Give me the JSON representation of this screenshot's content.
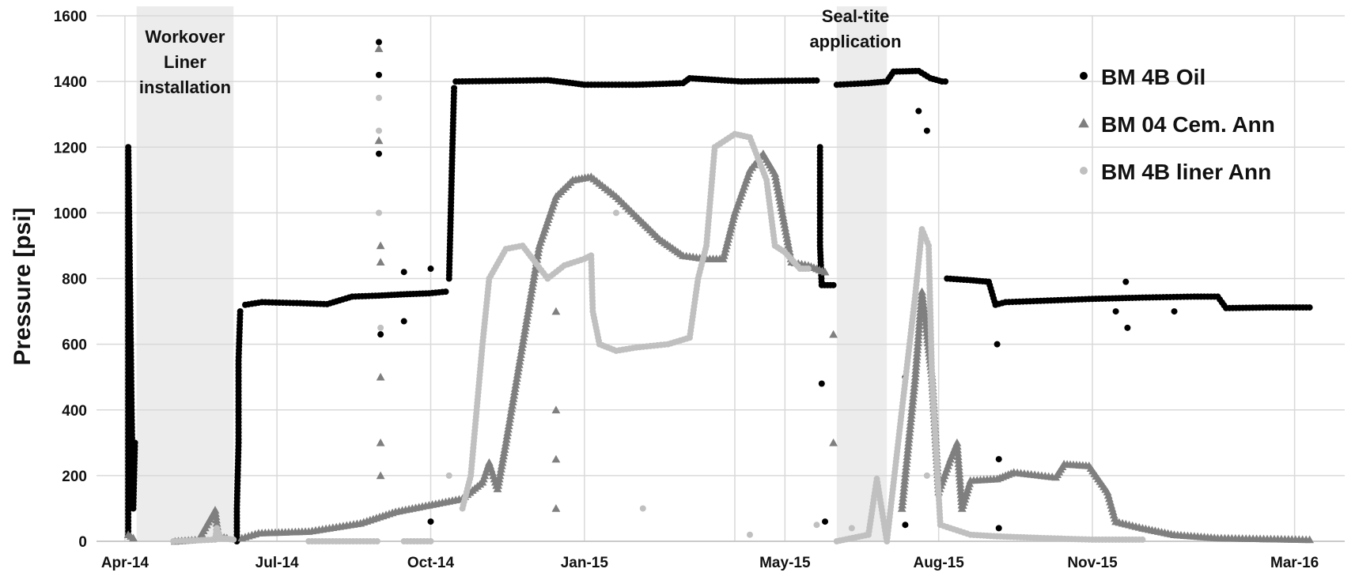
{
  "chart_data": {
    "type": "scatter",
    "title": "",
    "xlabel": "",
    "ylabel": "Pressure [psi]",
    "ylim": [
      0,
      1600
    ],
    "xlim": [
      "2014-03-15",
      "2016-03-31"
    ],
    "x_ticks": [
      {
        "date": "2014-04-01",
        "label": "Apr-14"
      },
      {
        "date": "2014-07-01",
        "label": "Jul-14"
      },
      {
        "date": "2014-10-01",
        "label": "Oct-14"
      },
      {
        "date": "2015-01-01",
        "label": "Jan-15"
      },
      {
        "date": "2015-04-01",
        "label": ""
      },
      {
        "date": "2015-05-01",
        "label": "May-15"
      },
      {
        "date": "2015-08-01",
        "label": "Aug-15"
      },
      {
        "date": "2015-11-01",
        "label": "Nov-15"
      },
      {
        "date": "2016-03-01",
        "label": "Mar-16"
      }
    ],
    "y_ticks": [
      0,
      200,
      400,
      600,
      800,
      1000,
      1200,
      1400,
      1600
    ],
    "grid": true,
    "legend_position": "top-right",
    "shaded_regions": [
      {
        "start": "2014-04-08",
        "end": "2014-06-05",
        "label_lines": [
          "Workover",
          "Liner",
          "installation"
        ]
      },
      {
        "start": "2015-06-01",
        "end": "2015-07-01",
        "label_lines": [
          "Seal-tite",
          "application"
        ]
      }
    ],
    "series": [
      {
        "name": "BM 4B Oil",
        "marker": "circle",
        "color": "#000000",
        "segments": [
          [
            [
              "2014-04-03",
              20
            ],
            [
              "2014-04-03",
              200
            ],
            [
              "2014-04-03",
              600
            ],
            [
              "2014-04-03",
              1000
            ],
            [
              "2014-04-03",
              1200
            ],
            [
              "2014-04-04",
              800
            ],
            [
              "2014-04-05",
              400
            ],
            [
              "2014-04-06",
              100
            ],
            [
              "2014-04-07",
              300
            ]
          ],
          [
            [
              "2014-06-07",
              0
            ],
            [
              "2014-06-07",
              100
            ],
            [
              "2014-06-08",
              300
            ],
            [
              "2014-06-08",
              550
            ],
            [
              "2014-06-09",
              700
            ]
          ],
          [
            [
              "2014-06-12",
              720
            ],
            [
              "2014-06-22",
              728
            ],
            [
              "2014-07-15",
              725
            ],
            [
              "2014-07-31",
              722
            ],
            [
              "2014-08-15",
              745
            ],
            [
              "2014-08-31",
              748
            ],
            [
              "2014-09-15",
              752
            ],
            [
              "2014-09-30",
              755
            ],
            [
              "2014-10-10",
              760
            ]
          ],
          [
            [
              "2014-10-12",
              800
            ],
            [
              "2014-10-13",
              1000
            ],
            [
              "2014-10-14",
              1200
            ],
            [
              "2014-10-15",
              1380
            ]
          ],
          [
            [
              "2014-10-16",
              1400
            ],
            [
              "2014-11-15",
              1402
            ],
            [
              "2014-12-10",
              1404
            ],
            [
              "2014-12-25",
              1395
            ],
            [
              "2015-01-01",
              1390
            ],
            [
              "2015-02-01",
              1390
            ],
            [
              "2015-03-01",
              1395
            ],
            [
              "2015-03-05",
              1410
            ],
            [
              "2015-03-20",
              1405
            ],
            [
              "2015-04-05",
              1400
            ],
            [
              "2015-05-01",
              1402
            ],
            [
              "2015-05-20",
              1403
            ]
          ],
          [
            [
              "2015-05-22",
              1200
            ],
            [
              "2015-05-22",
              900
            ],
            [
              "2015-05-23",
              780
            ],
            [
              "2015-05-30",
              780
            ]
          ],
          [
            [
              "2015-06-01",
              1390
            ],
            [
              "2015-06-20",
              1395
            ],
            [
              "2015-07-01",
              1400
            ],
            [
              "2015-07-05",
              1430
            ],
            [
              "2015-07-20",
              1432
            ],
            [
              "2015-07-27",
              1410
            ],
            [
              "2015-08-03",
              1400
            ],
            [
              "2015-08-05",
              1400
            ]
          ],
          [
            [
              "2015-08-06",
              800
            ],
            [
              "2015-08-20",
              795
            ],
            [
              "2015-08-31",
              790
            ],
            [
              "2015-09-04",
              720
            ],
            [
              "2015-09-10",
              728
            ],
            [
              "2015-10-01",
              732
            ],
            [
              "2015-11-01",
              738
            ],
            [
              "2015-12-01",
              742
            ],
            [
              "2016-01-01",
              745
            ],
            [
              "2016-01-15",
              745
            ],
            [
              "2016-01-20",
              710
            ],
            [
              "2016-02-15",
              712
            ],
            [
              "2016-03-10",
              712
            ]
          ]
        ],
        "scatter_points": [
          [
            "2014-08-31",
            1520
          ],
          [
            "2014-08-31",
            1420
          ],
          [
            "2014-08-31",
            1180
          ],
          [
            "2014-09-01",
            630
          ],
          [
            "2014-09-15",
            820
          ],
          [
            "2014-09-15",
            670
          ],
          [
            "2014-10-01",
            830
          ],
          [
            "2014-10-01",
            60
          ],
          [
            "2015-05-23",
            480
          ],
          [
            "2015-05-25",
            60
          ],
          [
            "2015-07-12",
            500
          ],
          [
            "2015-07-12",
            50
          ],
          [
            "2015-07-20",
            1310
          ],
          [
            "2015-07-25",
            1250
          ],
          [
            "2015-09-05",
            600
          ],
          [
            "2015-09-06",
            250
          ],
          [
            "2015-09-06",
            40
          ],
          [
            "2015-11-15",
            700
          ],
          [
            "2015-11-21",
            790
          ],
          [
            "2015-11-22",
            650
          ],
          [
            "2015-12-20",
            700
          ]
        ]
      },
      {
        "name": "BM 04 Cem. Ann",
        "marker": "triangle",
        "color": "#7f7f7f",
        "segments": [
          [
            [
              "2014-04-03",
              20
            ],
            [
              "2014-04-06",
              10
            ]
          ],
          [
            [
              "2014-05-01",
              0
            ],
            [
              "2014-05-15",
              5
            ],
            [
              "2014-05-25",
              95
            ],
            [
              "2014-05-27",
              15
            ],
            [
              "2014-06-01",
              10
            ]
          ],
          [
            [
              "2014-06-10",
              10
            ],
            [
              "2014-06-20",
              25
            ],
            [
              "2014-07-20",
              30
            ],
            [
              "2014-08-20",
              55
            ],
            [
              "2014-09-10",
              90
            ],
            [
              "2014-09-30",
              110
            ],
            [
              "2014-10-20",
              130
            ],
            [
              "2014-11-01",
              180
            ],
            [
              "2014-11-05",
              240
            ],
            [
              "2014-11-10",
              160
            ],
            [
              "2014-11-15",
              300
            ],
            [
              "2014-11-25",
              600
            ],
            [
              "2014-12-05",
              900
            ],
            [
              "2014-12-15",
              1050
            ],
            [
              "2014-12-25",
              1100
            ],
            [
              "2015-01-05",
              1110
            ],
            [
              "2015-01-20",
              1050
            ],
            [
              "2015-02-01",
              990
            ],
            [
              "2015-02-15",
              920
            ],
            [
              "2015-03-01",
              870
            ],
            [
              "2015-03-15",
              860
            ],
            [
              "2015-03-25",
              860
            ],
            [
              "2015-04-01",
              1000
            ],
            [
              "2015-04-10",
              1130
            ],
            [
              "2015-04-18",
              1180
            ],
            [
              "2015-04-25",
              1120
            ],
            [
              "2015-05-05",
              850
            ],
            [
              "2015-05-15",
              840
            ],
            [
              "2015-05-25",
              820
            ]
          ],
          [
            [
              "2015-07-10",
              100
            ],
            [
              "2015-07-18",
              500
            ],
            [
              "2015-07-22",
              760
            ],
            [
              "2015-07-28",
              500
            ],
            [
              "2015-08-01",
              150
            ],
            [
              "2015-08-08",
              250
            ],
            [
              "2015-08-12",
              300
            ],
            [
              "2015-08-15",
              100
            ],
            [
              "2015-08-20",
              185
            ],
            [
              "2015-09-05",
              190
            ],
            [
              "2015-09-15",
              210
            ],
            [
              "2015-10-10",
              195
            ],
            [
              "2015-10-15",
              235
            ],
            [
              "2015-10-30",
              230
            ],
            [
              "2015-11-10",
              150
            ],
            [
              "2015-11-15",
              60
            ],
            [
              "2015-12-01",
              40
            ],
            [
              "2015-12-20",
              20
            ],
            [
              "2016-01-15",
              10
            ],
            [
              "2016-03-10",
              5
            ]
          ]
        ],
        "scatter_points": [
          [
            "2014-08-31",
            1500
          ],
          [
            "2014-08-31",
            1220
          ],
          [
            "2014-09-01",
            900
          ],
          [
            "2014-09-01",
            850
          ],
          [
            "2014-09-01",
            500
          ],
          [
            "2014-09-01",
            300
          ],
          [
            "2014-09-01",
            200
          ],
          [
            "2014-12-15",
            700
          ],
          [
            "2014-12-15",
            400
          ],
          [
            "2014-12-15",
            250
          ],
          [
            "2014-12-15",
            100
          ],
          [
            "2015-05-30",
            630
          ],
          [
            "2015-05-30",
            300
          ]
        ]
      },
      {
        "name": "BM 4B liner Ann",
        "marker": "circle",
        "color": "#c0c0c0",
        "segments": [
          [
            [
              "2014-04-30",
              0
            ],
            [
              "2014-05-25",
              5
            ],
            [
              "2014-05-26",
              40
            ],
            [
              "2014-05-28",
              10
            ],
            [
              "2014-06-05",
              5
            ]
          ],
          [
            [
              "2014-07-20",
              0
            ],
            [
              "2014-08-30",
              0
            ]
          ],
          [
            [
              "2014-09-15",
              0
            ],
            [
              "2014-10-01",
              0
            ]
          ],
          [
            [
              "2014-10-20",
              100
            ],
            [
              "2014-10-25",
              200
            ],
            [
              "2014-11-01",
              600
            ],
            [
              "2014-11-05",
              800
            ],
            [
              "2014-11-15",
              890
            ],
            [
              "2014-11-25",
              900
            ],
            [
              "2014-12-01",
              860
            ],
            [
              "2014-12-10",
              800
            ],
            [
              "2014-12-20",
              840
            ],
            [
              "2015-01-01",
              860
            ],
            [
              "2015-01-05",
              870
            ],
            [
              "2015-01-06",
              700
            ],
            [
              "2015-01-10",
              600
            ],
            [
              "2015-01-20",
              580
            ],
            [
              "2015-02-01",
              590
            ],
            [
              "2015-02-20",
              600
            ],
            [
              "2015-03-05",
              620
            ],
            [
              "2015-03-10",
              800
            ],
            [
              "2015-03-15",
              900
            ],
            [
              "2015-03-20",
              1200
            ],
            [
              "2015-04-01",
              1240
            ],
            [
              "2015-04-10",
              1230
            ],
            [
              "2015-04-20",
              1100
            ],
            [
              "2015-04-25",
              900
            ],
            [
              "2015-05-01",
              880
            ],
            [
              "2015-05-10",
              830
            ],
            [
              "2015-05-15",
              830
            ]
          ],
          [
            [
              "2015-06-01",
              0
            ],
            [
              "2015-06-20",
              20
            ],
            [
              "2015-06-25",
              190
            ],
            [
              "2015-07-01",
              0
            ],
            [
              "2015-07-10",
              400
            ],
            [
              "2015-07-18",
              750
            ],
            [
              "2015-07-22",
              950
            ],
            [
              "2015-07-26",
              900
            ],
            [
              "2015-07-28",
              500
            ],
            [
              "2015-08-02",
              50
            ],
            [
              "2015-08-20",
              20
            ],
            [
              "2015-09-05",
              15
            ],
            [
              "2015-10-01",
              10
            ],
            [
              "2015-11-01",
              5
            ],
            [
              "2015-12-01",
              5
            ]
          ]
        ],
        "scatter_points": [
          [
            "2014-08-31",
            1350
          ],
          [
            "2014-08-31",
            1250
          ],
          [
            "2014-08-31",
            1000
          ],
          [
            "2014-09-01",
            650
          ],
          [
            "2014-10-12",
            200
          ],
          [
            "2015-01-20",
            1000
          ],
          [
            "2015-02-05",
            100
          ],
          [
            "2015-04-10",
            20
          ],
          [
            "2015-05-20",
            50
          ],
          [
            "2015-06-10",
            40
          ],
          [
            "2015-07-25",
            200
          ]
        ]
      }
    ]
  }
}
